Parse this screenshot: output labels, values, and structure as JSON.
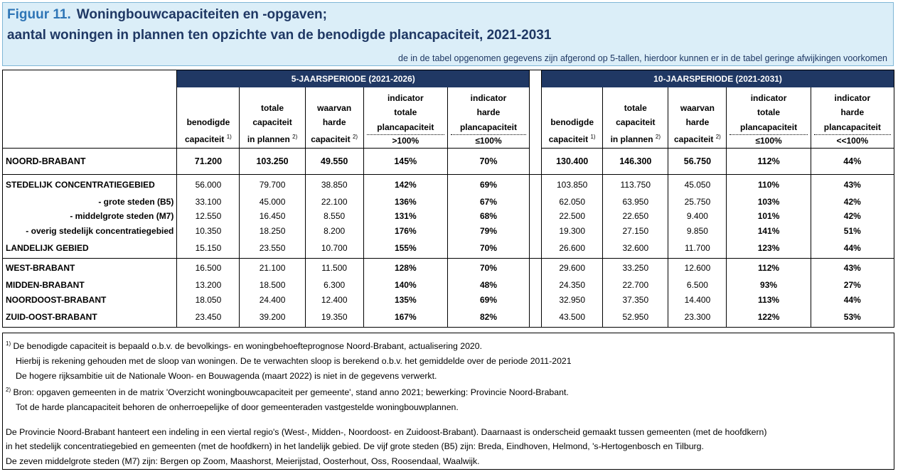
{
  "header": {
    "figure": "Figuur 11.",
    "title_line1": "Woningbouwcapaciteiten en -opgaven;",
    "title_line2": "aantal woningen in plannen ten opzichte van de benodigde plancapaciteit,  2021-2031",
    "note": "de in de tabel opgenomen gegevens zijn afgerond op 5-tallen, hierdoor kunnen er in de tabel geringe afwijkingen voorkomen"
  },
  "table": {
    "groups": [
      "5-JAARSPERIODE (2021-2026)",
      "10-JAARSPERIODE (2021-2031)"
    ],
    "columns": [
      {
        "lines": [
          "benodigde",
          "capaciteit"
        ],
        "sup": "1)"
      },
      {
        "lines": [
          "totale",
          "capaciteit",
          "in plannen"
        ],
        "sup": "2)"
      },
      {
        "lines": [
          "waarvan",
          "harde",
          "capaciteit"
        ],
        "sup": "2)"
      },
      {
        "lines": [
          "indicator",
          "totale",
          "plancapaciteit"
        ],
        "threshold": ">100%"
      },
      {
        "lines": [
          "indicator",
          "harde",
          "plancapaciteit"
        ],
        "threshold": "≤100%"
      },
      {
        "lines": [
          "benodigde",
          "capaciteit"
        ],
        "sup": "1)"
      },
      {
        "lines": [
          "totale",
          "capaciteit",
          "in plannen"
        ],
        "sup": "2)"
      },
      {
        "lines": [
          "waarvan",
          "harde",
          "capaciteit"
        ],
        "sup": "2)"
      },
      {
        "lines": [
          "indicator",
          "totale",
          "plancapaciteit"
        ],
        "threshold": "≤100%"
      },
      {
        "lines": [
          "indicator",
          "harde",
          "plancapaciteit"
        ],
        "threshold": "<<100%"
      }
    ],
    "sections": [
      [
        {
          "label": "NOORD-BRABANT",
          "cells": [
            "71.200",
            "103.250",
            "49.550",
            "145%",
            "70%",
            "130.400",
            "146.300",
            "56.750",
            "112%",
            "44%"
          ]
        }
      ],
      [
        {
          "label": "STEDELIJK CONCENTRATIEGEBIED",
          "cells": [
            "56.000",
            "79.700",
            "38.850",
            "142%",
            "69%",
            "103.850",
            "113.750",
            "45.050",
            "110%",
            "43%"
          ]
        },
        {
          "label": "- grote steden (B5)",
          "cells": [
            "33.100",
            "45.000",
            "22.100",
            "136%",
            "67%",
            "62.050",
            "63.950",
            "25.750",
            "103%",
            "42%"
          ]
        },
        {
          "label": "- middelgrote steden (M7)",
          "cells": [
            "12.550",
            "16.450",
            "8.550",
            "131%",
            "68%",
            "22.500",
            "22.650",
            "9.400",
            "101%",
            "42%"
          ]
        },
        {
          "label": "- overig stedelijk concentratiegebied",
          "cells": [
            "10.350",
            "18.250",
            "8.200",
            "176%",
            "79%",
            "19.300",
            "27.150",
            "9.850",
            "141%",
            "51%"
          ]
        },
        {
          "label": "LANDELIJK GEBIED",
          "cells": [
            "15.150",
            "23.550",
            "10.700",
            "155%",
            "70%",
            "26.600",
            "32.600",
            "11.700",
            "123%",
            "44%"
          ]
        }
      ],
      [
        {
          "label": "WEST-BRABANT",
          "cells": [
            "16.500",
            "21.100",
            "11.500",
            "128%",
            "70%",
            "29.600",
            "33.250",
            "12.600",
            "112%",
            "43%"
          ]
        },
        {
          "label": "MIDDEN-BRABANT",
          "cells": [
            "13.200",
            "18.500",
            "6.300",
            "140%",
            "48%",
            "24.350",
            "22.700",
            "6.500",
            "93%",
            "27%"
          ]
        },
        {
          "label": "NOORDOOST-BRABANT",
          "cells": [
            "18.050",
            "24.400",
            "12.400",
            "135%",
            "69%",
            "32.950",
            "37.350",
            "14.400",
            "113%",
            "44%"
          ]
        },
        {
          "label": "ZUID-OOST-BRABANT",
          "cells": [
            "23.450",
            "39.200",
            "19.350",
            "167%",
            "82%",
            "43.500",
            "52.950",
            "23.300",
            "122%",
            "53%"
          ]
        }
      ]
    ]
  },
  "footnotes": [
    {
      "mark": "1)",
      "lines": [
        "De benodigde capaciteit is bepaald o.b.v. de bevolkings- en woningbehoefteprognose Noord-Brabant, actualisering 2020.",
        "Hierbij is rekening gehouden met de sloop van woningen. De te verwachten sloop is berekend o.b.v. het gemiddelde over de periode 2011-2021",
        "De hogere rijksambitie uit de Nationale Woon- en Bouwagenda (maart 2022) is niet in de gegevens verwerkt."
      ]
    },
    {
      "mark": "2)",
      "lines": [
        "Bron: opgaven gemeenten in de matrix 'Overzicht woningbouwcapaciteit per gemeente', stand anno 2021; bewerking: Provincie Noord-Brabant.",
        "Tot de harde plancapaciteit behoren de onherroepelijke of door gemeenteraden vastgestelde woningbouwplannen."
      ]
    }
  ],
  "paragraph": [
    "De Provincie Noord-Brabant hanteert een indeling in een viertal regio's (West-, Midden-, Noordoost- en Zuidoost-Brabant). Daarnaast is onderscheid gemaakt tussen gemeenten (met de hoofdkern)",
    "in het stedelijk concentratiegebied en gemeenten (met de hoofdkern) in het landelijk gebied. De vijf grote steden (B5)  zijn: Breda, Eindhoven, Helmond, 's-Hertogenbosch en Tilburg.",
    "De zeven middelgrote steden (M7) zijn: Bergen op Zoom, Maashorst, Meierijstad, Oosterhout, Oss, Roosendaal, Waalwijk."
  ]
}
